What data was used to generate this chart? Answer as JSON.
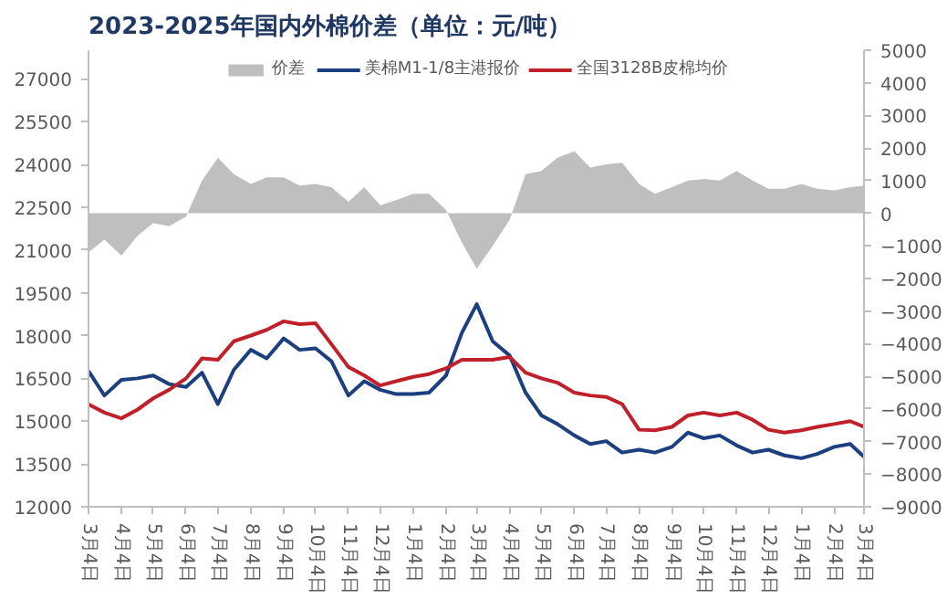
{
  "chart_data": {
    "type": "line",
    "title": "2023-2025年国内外棉价差（单位：元/吨）",
    "x": [
      "2023-03-04",
      "2023-03-19",
      "2023-04-04",
      "2023-04-19",
      "2023-05-04",
      "2023-05-19",
      "2023-06-04",
      "2023-06-19",
      "2023-07-04",
      "2023-07-19",
      "2023-08-04",
      "2023-08-19",
      "2023-09-04",
      "2023-09-19",
      "2023-10-04",
      "2023-10-19",
      "2023-11-04",
      "2023-11-19",
      "2023-12-04",
      "2023-12-19",
      "2024-01-04",
      "2024-01-19",
      "2024-02-04",
      "2024-02-19",
      "2024-03-04",
      "2024-03-19",
      "2024-04-04",
      "2024-04-19",
      "2024-05-04",
      "2024-05-19",
      "2024-06-04",
      "2024-06-19",
      "2024-07-04",
      "2024-07-19",
      "2024-08-04",
      "2024-08-19",
      "2024-09-04",
      "2024-09-19",
      "2024-10-04",
      "2024-10-19",
      "2024-11-04",
      "2024-11-19",
      "2024-12-04",
      "2024-12-19",
      "2025-01-04",
      "2025-01-19",
      "2025-02-04",
      "2025-02-19",
      "2025-03-04"
    ],
    "series": [
      {
        "name": "价差",
        "type": "area",
        "axis": "y2",
        "color": "#bfbfbf",
        "values": [
          -1200,
          -800,
          -1300,
          -700,
          -300,
          -400,
          -100,
          1000,
          1700,
          1200,
          900,
          1100,
          1100,
          850,
          900,
          800,
          350,
          800,
          250,
          400,
          600,
          600,
          100,
          -900,
          -1700,
          -1000,
          -200,
          1200,
          1300,
          1700,
          1900,
          1400,
          1500,
          1550,
          900,
          600,
          800,
          1000,
          1050,
          1000,
          1300,
          1000,
          750,
          750,
          900,
          750,
          700,
          800,
          850
        ]
      },
      {
        "name": "美棉M1-1/8主港报价",
        "color": "#1b3f7f",
        "values": [
          16760,
          15900,
          16450,
          16500,
          16600,
          16300,
          16200,
          16700,
          15600,
          16800,
          17500,
          17200,
          17900,
          17500,
          17550,
          17100,
          15900,
          16400,
          16100,
          15950,
          15950,
          16000,
          16600,
          18100,
          19100,
          17800,
          17300,
          16000,
          15200,
          14900,
          14500,
          14200,
          14300,
          13900,
          14000,
          13900,
          14100,
          14600,
          14400,
          14500,
          14150,
          13900,
          14000,
          13800,
          13700,
          13850,
          14100,
          14200,
          13750
        ]
      },
      {
        "name": "全国3128B皮棉均价",
        "color": "#c0202a",
        "values": [
          15590,
          15300,
          15100,
          15400,
          15800,
          16100,
          16500,
          17200,
          17150,
          17800,
          18000,
          18200,
          18500,
          18400,
          18430,
          17700,
          16900,
          16600,
          16250,
          16400,
          16550,
          16650,
          16850,
          17150,
          17150,
          17150,
          17250,
          16700,
          16500,
          16350,
          16000,
          15900,
          15850,
          15600,
          14700,
          14680,
          14800,
          15200,
          15300,
          15200,
          15300,
          15050,
          14700,
          14600,
          14680,
          14800,
          14900,
          15000,
          14800
        ]
      }
    ],
    "xlim": [
      "2023-03-04",
      "2025-03-04"
    ],
    "xticks": [
      {
        "value": "2023-03-04",
        "label": "3月4日"
      },
      {
        "value": "2023-04-04",
        "label": "4月4日"
      },
      {
        "value": "2023-05-04",
        "label": "5月4日"
      },
      {
        "value": "2023-06-04",
        "label": "6月4日"
      },
      {
        "value": "2023-07-04",
        "label": "7月4日"
      },
      {
        "value": "2023-08-04",
        "label": "8月4日"
      },
      {
        "value": "2023-09-04",
        "label": "9月4日"
      },
      {
        "value": "2023-10-04",
        "label": "10月4日"
      },
      {
        "value": "2023-11-04",
        "label": "11月4日"
      },
      {
        "value": "2023-12-04",
        "label": "12月4日"
      },
      {
        "value": "2024-01-04",
        "label": "1月4日"
      },
      {
        "value": "2024-02-04",
        "label": "2月4日"
      },
      {
        "value": "2024-03-04",
        "label": "3月4日"
      },
      {
        "value": "2024-04-04",
        "label": "4月4日"
      },
      {
        "value": "2024-05-04",
        "label": "5月4日"
      },
      {
        "value": "2024-06-04",
        "label": "6月4日"
      },
      {
        "value": "2024-07-04",
        "label": "7月4日"
      },
      {
        "value": "2024-08-04",
        "label": "8月4日"
      },
      {
        "value": "2024-09-04",
        "label": "9月4日"
      },
      {
        "value": "2024-10-04",
        "label": "10月4日"
      },
      {
        "value": "2024-11-04",
        "label": "11月4日"
      },
      {
        "value": "2024-12-04",
        "label": "12月4日"
      },
      {
        "value": "2025-01-04",
        "label": "1月4日"
      },
      {
        "value": "2025-02-04",
        "label": "2月4日"
      },
      {
        "value": "2025-03-04",
        "label": "3月4日"
      }
    ],
    "ylim": [
      12000,
      28000
    ],
    "yticks": [
      12000,
      13500,
      15000,
      16500,
      18000,
      19500,
      21000,
      22500,
      24000,
      25500,
      27000
    ],
    "y2lim": [
      -9000,
      5000
    ],
    "y2ticks": [
      -9000,
      -8000,
      -7000,
      -6000,
      -5000,
      -4000,
      -3000,
      -2000,
      -1000,
      0,
      1000,
      2000,
      3000,
      4000,
      5000
    ],
    "legend": "top",
    "grid": false
  }
}
